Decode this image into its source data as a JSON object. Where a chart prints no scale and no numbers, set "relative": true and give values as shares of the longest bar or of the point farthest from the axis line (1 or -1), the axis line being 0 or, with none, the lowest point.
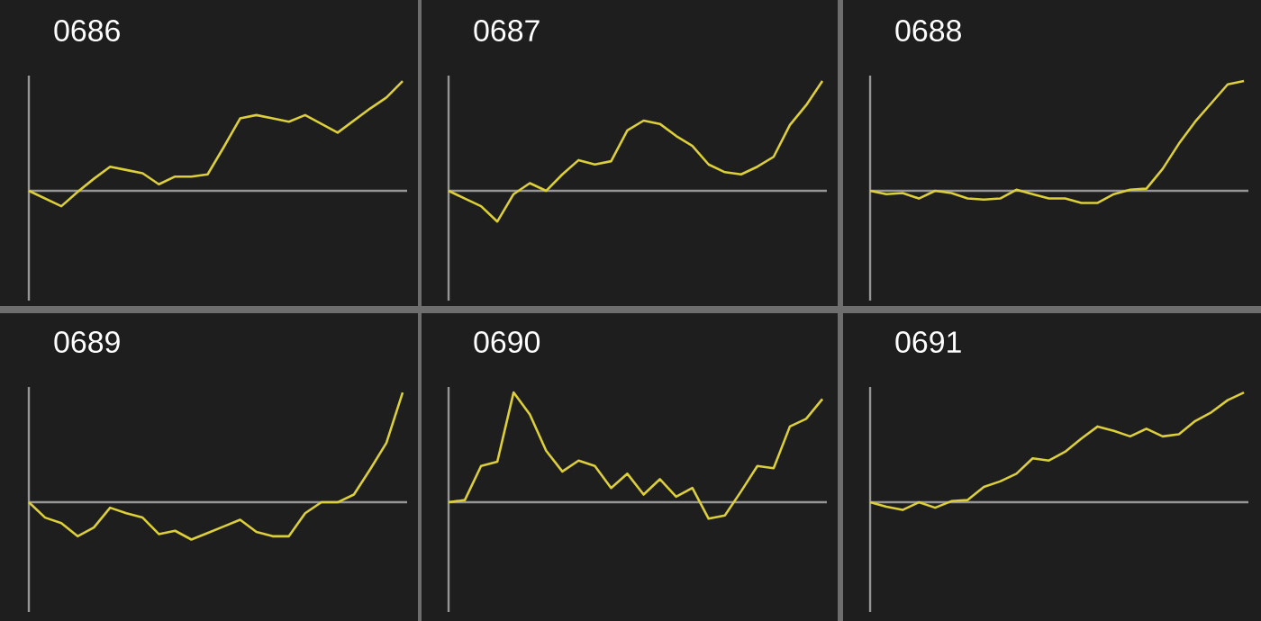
{
  "chart_data": [
    {
      "type": "line",
      "relative": true,
      "title": "0686",
      "color": "#dccf3a",
      "categories": [
        null,
        null,
        null,
        null,
        null,
        null,
        null,
        null,
        null,
        null,
        null,
        null,
        null,
        null,
        null,
        null,
        null,
        null,
        null,
        null,
        null,
        null,
        null,
        null
      ],
      "values": [
        0,
        -0.07,
        -0.14,
        -0.01,
        0.11,
        0.22,
        0.19,
        0.16,
        0.06,
        0.13,
        0.13,
        0.15,
        0.4,
        0.66,
        0.69,
        0.66,
        0.63,
        0.69,
        0.61,
        0.53,
        0.64,
        0.75,
        0.85,
        1
      ]
    },
    {
      "type": "line",
      "relative": true,
      "title": "0687",
      "color": "#dccf3a",
      "categories": [
        null,
        null,
        null,
        null,
        null,
        null,
        null,
        null,
        null,
        null,
        null,
        null,
        null,
        null,
        null,
        null,
        null,
        null,
        null,
        null,
        null,
        null,
        null,
        null
      ],
      "values": [
        0,
        -0.07,
        -0.14,
        -0.28,
        -0.03,
        0.07,
        0,
        0.15,
        0.28,
        0.24,
        0.27,
        0.55,
        0.64,
        0.61,
        0.5,
        0.41,
        0.24,
        0.17,
        0.15,
        0.22,
        0.31,
        0.6,
        0.78,
        1
      ]
    },
    {
      "type": "line",
      "relative": true,
      "title": "0688",
      "color": "#dccf3a",
      "categories": [
        null,
        null,
        null,
        null,
        null,
        null,
        null,
        null,
        null,
        null,
        null,
        null,
        null,
        null,
        null,
        null,
        null,
        null,
        null,
        null,
        null,
        null,
        null,
        null
      ],
      "values": [
        0,
        -0.03,
        -0.02,
        -0.07,
        0,
        -0.02,
        -0.07,
        -0.08,
        -0.07,
        0.01,
        -0.03,
        -0.07,
        -0.07,
        -0.11,
        -0.11,
        -0.03,
        0.01,
        0.02,
        0.2,
        0.43,
        0.63,
        0.8,
        0.97,
        1
      ]
    },
    {
      "type": "line",
      "relative": true,
      "title": "0689",
      "color": "#dccf3a",
      "categories": [
        null,
        null,
        null,
        null,
        null,
        null,
        null,
        null,
        null,
        null,
        null,
        null,
        null,
        null,
        null,
        null,
        null,
        null,
        null,
        null,
        null,
        null,
        null,
        null
      ],
      "values": [
        0,
        -0.14,
        -0.19,
        -0.31,
        -0.23,
        -0.05,
        -0.1,
        -0.14,
        -0.29,
        -0.26,
        -0.34,
        -0.28,
        -0.22,
        -0.16,
        -0.27,
        -0.31,
        -0.31,
        -0.1,
        0,
        0,
        0.07,
        0.3,
        0.54,
        1
      ]
    },
    {
      "type": "line",
      "relative": true,
      "title": "0690",
      "color": "#dccf3a",
      "categories": [
        null,
        null,
        null,
        null,
        null,
        null,
        null,
        null,
        null,
        null,
        null,
        null,
        null,
        null,
        null,
        null,
        null,
        null,
        null,
        null,
        null,
        null,
        null,
        null
      ],
      "values": [
        0,
        0.02,
        0.33,
        0.37,
        1,
        0.8,
        0.47,
        0.28,
        0.38,
        0.33,
        0.13,
        0.26,
        0.07,
        0.21,
        0.05,
        0.13,
        -0.15,
        -0.12,
        0.1,
        0.33,
        0.31,
        0.69,
        0.76,
        0.94
      ]
    },
    {
      "type": "line",
      "relative": true,
      "title": "0691",
      "color": "#dccf3a",
      "categories": [
        null,
        null,
        null,
        null,
        null,
        null,
        null,
        null,
        null,
        null,
        null,
        null,
        null,
        null,
        null,
        null,
        null,
        null,
        null,
        null,
        null,
        null,
        null,
        null
      ],
      "values": [
        0,
        -0.04,
        -0.07,
        0,
        -0.05,
        0.01,
        0.02,
        0.14,
        0.19,
        0.26,
        0.4,
        0.38,
        0.46,
        0.58,
        0.69,
        0.65,
        0.6,
        0.67,
        0.6,
        0.62,
        0.74,
        0.82,
        0.93,
        1
      ]
    }
  ]
}
